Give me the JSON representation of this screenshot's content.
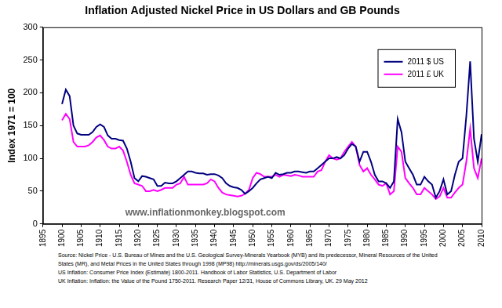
{
  "chart_data": {
    "type": "line",
    "title": "Inflation Adjusted Nickel Price in US Dollars and GB Pounds",
    "y_label": "Index 1971 = 100",
    "annotations": [
      "www.inflationmonkey.blogspot.com"
    ],
    "source": [
      "Source: Nickel Price  -  U.S. Bureau of Mines and the U.S. Geological Survey-Minerals Yearbook (MYB) and its predecessor, Mineral Resources of the United",
      "States (MR), and Metal Prices in the United States through 1998 (MP98) http://minerals.usgs.gov/ds/2005/140/",
      "US Inflation:  Consumer Price Index (Estimate) 1800-2011. Handbook of Labor Statistics, U.S. Department of Labor",
      "UK Inflation:  Inflation: the Value of the Pound 1750-2011. Research Paper  12/31, House of Commons Library, UK. 29 May 2012"
    ],
    "x": [
      1900,
      1901,
      1902,
      1903,
      1904,
      1905,
      1906,
      1907,
      1908,
      1909,
      1910,
      1911,
      1912,
      1913,
      1914,
      1915,
      1916,
      1917,
      1918,
      1919,
      1920,
      1921,
      1922,
      1923,
      1924,
      1925,
      1926,
      1927,
      1928,
      1929,
      1930,
      1931,
      1932,
      1933,
      1934,
      1935,
      1936,
      1937,
      1938,
      1939,
      1940,
      1941,
      1942,
      1943,
      1944,
      1945,
      1946,
      1947,
      1948,
      1949,
      1950,
      1951,
      1952,
      1953,
      1954,
      1955,
      1956,
      1957,
      1958,
      1959,
      1960,
      1961,
      1962,
      1963,
      1964,
      1965,
      1966,
      1967,
      1968,
      1969,
      1970,
      1971,
      1972,
      1973,
      1974,
      1975,
      1976,
      1977,
      1978,
      1979,
      1980,
      1981,
      1982,
      1983,
      1984,
      1985,
      1986,
      1987,
      1988,
      1989,
      1990,
      1991,
      1992,
      1993,
      1994,
      1995,
      1996,
      1997,
      1998,
      1999,
      2000,
      2001,
      2002,
      2003,
      2004,
      2005,
      2006,
      2007,
      2008,
      2009,
      2010
    ],
    "series": [
      {
        "name": "2011 $ US",
        "color": "#000080",
        "values": [
          183,
          205,
          195,
          150,
          138,
          136,
          136,
          136,
          140,
          148,
          152,
          148,
          135,
          130,
          130,
          128,
          127,
          115,
          95,
          70,
          65,
          73,
          72,
          70,
          68,
          58,
          58,
          63,
          62,
          62,
          65,
          70,
          75,
          80,
          80,
          78,
          77,
          77,
          75,
          76,
          76,
          74,
          70,
          62,
          58,
          56,
          55,
          52,
          46,
          50,
          55,
          62,
          68,
          70,
          72,
          70,
          78,
          75,
          76,
          78,
          78,
          80,
          80,
          79,
          78,
          80,
          80,
          85,
          90,
          95,
          100,
          100,
          102,
          100,
          105,
          115,
          122,
          118,
          95,
          110,
          110,
          95,
          75,
          65,
          65,
          62,
          55,
          65,
          160,
          140,
          95,
          85,
          75,
          60,
          60,
          72,
          65,
          60,
          40,
          50,
          68,
          45,
          50,
          75,
          95,
          100,
          165,
          248,
          130,
          95,
          137
        ]
      },
      {
        "name": "2011 £ UK",
        "color": "#ff00ff",
        "values": [
          158,
          168,
          160,
          125,
          118,
          118,
          118,
          120,
          125,
          132,
          135,
          128,
          118,
          115,
          115,
          118,
          112,
          95,
          75,
          62,
          60,
          58,
          50,
          50,
          52,
          50,
          52,
          55,
          55,
          55,
          60,
          62,
          72,
          60,
          60,
          60,
          60,
          60,
          62,
          68,
          65,
          55,
          48,
          45,
          44,
          43,
          42,
          43,
          46,
          52,
          70,
          78,
          76,
          72,
          72,
          72,
          75,
          72,
          75,
          74,
          73,
          75,
          74,
          72,
          72,
          72,
          72,
          80,
          82,
          95,
          105,
          100,
          98,
          100,
          110,
          118,
          125,
          118,
          90,
          80,
          85,
          75,
          68,
          60,
          58,
          62,
          45,
          50,
          118,
          110,
          70,
          62,
          55,
          45,
          45,
          55,
          50,
          45,
          38,
          42,
          55,
          40,
          40,
          48,
          55,
          60,
          95,
          145,
          85,
          70,
          100
        ]
      }
    ],
    "xlim": [
      1895,
      2010
    ],
    "xticks": [
      1895,
      1900,
      1905,
      1910,
      1915,
      1920,
      1925,
      1930,
      1935,
      1940,
      1945,
      1950,
      1955,
      1960,
      1965,
      1970,
      1975,
      1980,
      1985,
      1990,
      1995,
      2000,
      2005,
      2010
    ],
    "ylim": [
      0,
      300
    ],
    "yticks": [
      0,
      50,
      100,
      150,
      200,
      250,
      300
    ],
    "grid": false,
    "legend": "upper right"
  }
}
